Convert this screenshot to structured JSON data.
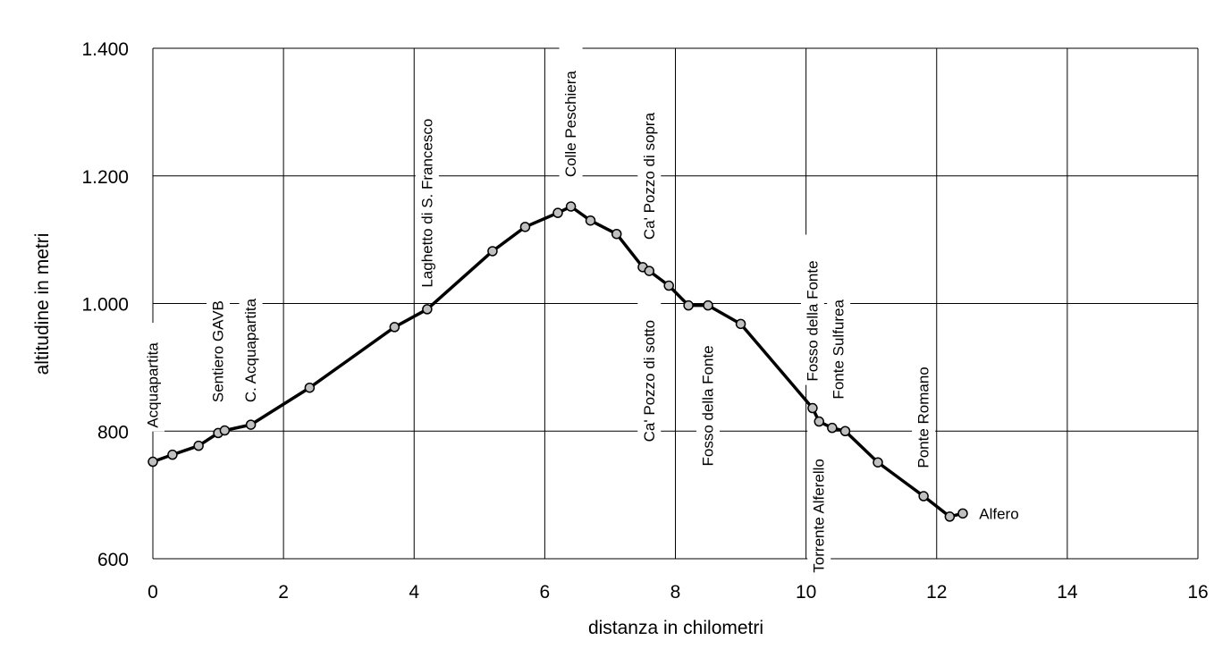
{
  "chart_data": {
    "type": "line",
    "title": "",
    "xlabel": "distanza in chilometri",
    "ylabel": "altitudine  in metri",
    "xlim": [
      0,
      16
    ],
    "ylim": [
      600,
      1400
    ],
    "xticks": [
      0,
      2,
      4,
      6,
      8,
      10,
      12,
      14,
      16
    ],
    "yticks": [
      600,
      800,
      1000,
      1200,
      1400
    ],
    "xtick_labels": [
      "0",
      "2",
      "4",
      "6",
      "8",
      "10",
      "12",
      "14",
      "16"
    ],
    "ytick_labels": [
      "600",
      "800",
      "1.000",
      "1.200",
      "1.400"
    ],
    "grid": true,
    "legend": "none",
    "series": [
      {
        "x": [
          0,
          0.3,
          0.7,
          1.0,
          1.1,
          1.5,
          2.4,
          3.7,
          4.2,
          5.2,
          5.7,
          6.2,
          6.4,
          6.7,
          7.1,
          7.5,
          7.6,
          7.9,
          8.2,
          8.5,
          9.0,
          10.1,
          10.2,
          10.4,
          10.6,
          11.1,
          11.8,
          12.2,
          12.4
        ],
        "y": [
          752,
          763,
          777,
          797,
          801,
          810,
          868,
          963,
          991,
          1082,
          1120,
          1142,
          1152,
          1130,
          1109,
          1057,
          1051,
          1028,
          997,
          997,
          968,
          836,
          815,
          805,
          800,
          751,
          698,
          666,
          671
        ]
      }
    ],
    "annotations": [
      {
        "text": "Acquapartita",
        "x": 0.0,
        "y": 805,
        "rotate": true
      },
      {
        "text": "Sentiero GAVB",
        "x": 1.0,
        "y": 845,
        "rotate": true
      },
      {
        "text": "C. Acquapartita",
        "x": 1.5,
        "y": 845,
        "rotate": true
      },
      {
        "text": "Laghetto di S. Francesco",
        "x": 4.2,
        "y": 1025,
        "rotate": true
      },
      {
        "text": "Colle Peschiera",
        "x": 6.4,
        "y": 1198,
        "rotate": true
      },
      {
        "text": "Ca' Pozzo di sopra",
        "x": 7.6,
        "y": 1100,
        "rotate": true
      },
      {
        "text": "Ca' Pozzo di sotto",
        "x": 7.6,
        "y": 783,
        "rotate": true
      },
      {
        "text": "Fosso della Fonte",
        "x": 8.5,
        "y": 745,
        "rotate": true
      },
      {
        "text": "Fosso della Fonte",
        "x": 10.1,
        "y": 878,
        "rotate": true
      },
      {
        "text": "Fonte Sulfurea",
        "x": 10.5,
        "y": 850,
        "rotate": true
      },
      {
        "text": "Torrente Alferello",
        "x": 10.2,
        "y": 578,
        "rotate": true
      },
      {
        "text": "Ponte Romano",
        "x": 11.8,
        "y": 742,
        "rotate": true
      },
      {
        "text": "Alfero",
        "x": 12.65,
        "y": 671,
        "rotate": false
      }
    ],
    "colors": {
      "line": "#000000",
      "marker_fill": "#c0c0c0",
      "grid": "#000000"
    }
  }
}
